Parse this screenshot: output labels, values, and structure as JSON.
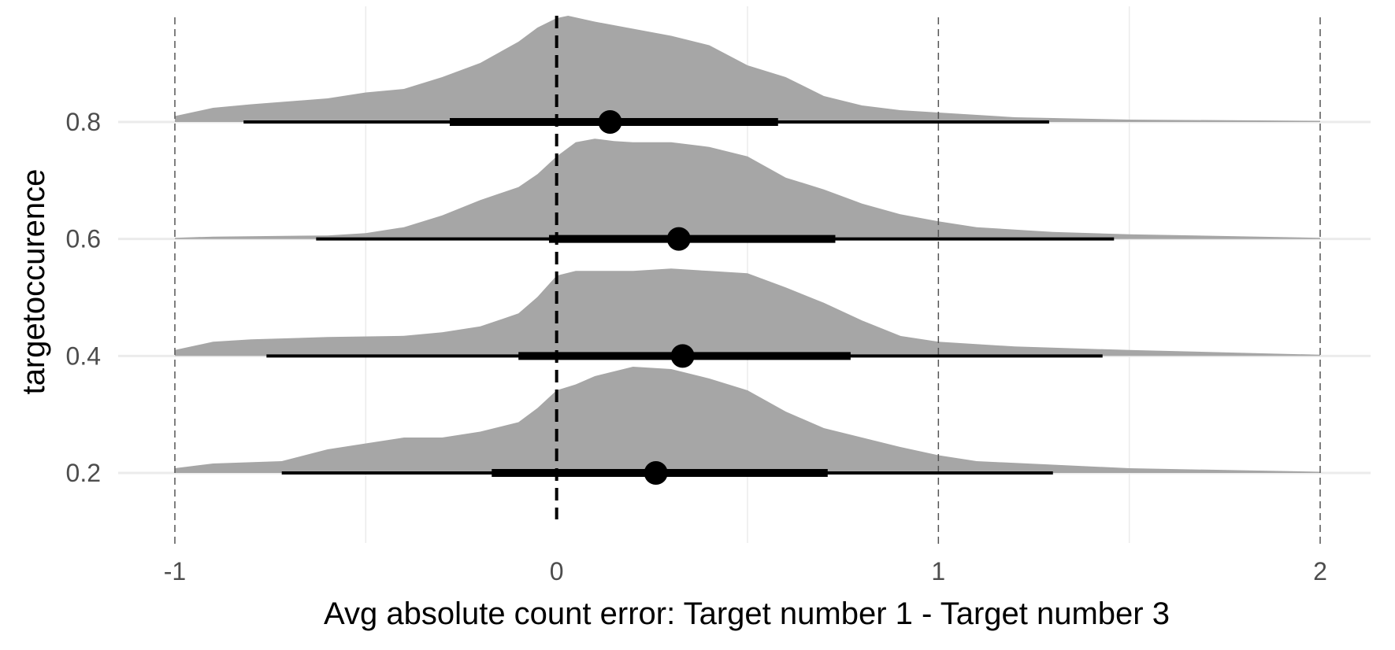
{
  "chart_data": {
    "type": "ridgeline",
    "xlabel": "Avg absolute count error: Target number 1 - Target number 3",
    "ylabel": "targetoccurence",
    "xlim": [
      -1,
      2
    ],
    "x_ticks": [
      "-1",
      "0",
      "1",
      "2"
    ],
    "y_ticks": [
      "0.2",
      "0.4",
      "0.6",
      "0.8"
    ],
    "grid": true,
    "reference_lines": [
      {
        "x": -1,
        "style": "thin-dashed"
      },
      {
        "x": 0,
        "style": "thick-dashed"
      },
      {
        "x": 1,
        "style": "thin-dashed"
      },
      {
        "x": 2,
        "style": "thin-dashed"
      }
    ],
    "series": [
      {
        "y": 0.2,
        "point": 0.26,
        "interval_66": [
          -0.17,
          0.71
        ],
        "interval_95": [
          -0.72,
          1.3
        ],
        "density": [
          [
            -1.0,
            0.04
          ],
          [
            -0.9,
            0.08
          ],
          [
            -0.72,
            0.1
          ],
          [
            -0.6,
            0.2
          ],
          [
            -0.5,
            0.25
          ],
          [
            -0.4,
            0.3
          ],
          [
            -0.3,
            0.3
          ],
          [
            -0.2,
            0.35
          ],
          [
            -0.1,
            0.43
          ],
          [
            -0.05,
            0.55
          ],
          [
            0.0,
            0.7
          ],
          [
            0.05,
            0.75
          ],
          [
            0.1,
            0.82
          ],
          [
            0.2,
            0.9
          ],
          [
            0.3,
            0.88
          ],
          [
            0.4,
            0.8
          ],
          [
            0.5,
            0.7
          ],
          [
            0.6,
            0.52
          ],
          [
            0.7,
            0.38
          ],
          [
            0.8,
            0.3
          ],
          [
            0.9,
            0.22
          ],
          [
            1.0,
            0.15
          ],
          [
            1.1,
            0.1
          ],
          [
            1.3,
            0.07
          ],
          [
            1.5,
            0.04
          ],
          [
            2.0,
            0.01
          ]
        ]
      },
      {
        "y": 0.4,
        "point": 0.33,
        "interval_66": [
          -0.1,
          0.77
        ],
        "interval_95": [
          -0.76,
          1.43
        ],
        "density": [
          [
            -1.0,
            0.05
          ],
          [
            -0.9,
            0.12
          ],
          [
            -0.8,
            0.14
          ],
          [
            -0.6,
            0.16
          ],
          [
            -0.4,
            0.17
          ],
          [
            -0.3,
            0.2
          ],
          [
            -0.2,
            0.25
          ],
          [
            -0.1,
            0.36
          ],
          [
            -0.05,
            0.5
          ],
          [
            0.0,
            0.68
          ],
          [
            0.05,
            0.72
          ],
          [
            0.2,
            0.72
          ],
          [
            0.3,
            0.74
          ],
          [
            0.4,
            0.72
          ],
          [
            0.5,
            0.7
          ],
          [
            0.6,
            0.58
          ],
          [
            0.7,
            0.45
          ],
          [
            0.8,
            0.3
          ],
          [
            0.9,
            0.17
          ],
          [
            1.0,
            0.12
          ],
          [
            1.2,
            0.08
          ],
          [
            1.5,
            0.05
          ],
          [
            2.0,
            0.01
          ]
        ]
      },
      {
        "y": 0.6,
        "point": 0.32,
        "interval_66": [
          -0.02,
          0.73
        ],
        "interval_95": [
          -0.63,
          1.46
        ],
        "density": [
          [
            -1.0,
            0.01
          ],
          [
            -0.9,
            0.02
          ],
          [
            -0.6,
            0.03
          ],
          [
            -0.5,
            0.05
          ],
          [
            -0.4,
            0.1
          ],
          [
            -0.3,
            0.2
          ],
          [
            -0.2,
            0.33
          ],
          [
            -0.1,
            0.44
          ],
          [
            -0.05,
            0.55
          ],
          [
            0.0,
            0.7
          ],
          [
            0.05,
            0.82
          ],
          [
            0.1,
            0.85
          ],
          [
            0.15,
            0.83
          ],
          [
            0.2,
            0.82
          ],
          [
            0.3,
            0.82
          ],
          [
            0.4,
            0.78
          ],
          [
            0.5,
            0.7
          ],
          [
            0.6,
            0.52
          ],
          [
            0.7,
            0.42
          ],
          [
            0.8,
            0.3
          ],
          [
            0.9,
            0.21
          ],
          [
            1.0,
            0.15
          ],
          [
            1.1,
            0.1
          ],
          [
            1.3,
            0.06
          ],
          [
            1.5,
            0.04
          ],
          [
            2.0,
            0.01
          ]
        ]
      },
      {
        "y": 0.8,
        "point": 0.14,
        "interval_66": [
          -0.28,
          0.58
        ],
        "interval_95": [
          -0.82,
          1.29
        ],
        "density": [
          [
            -1.0,
            0.05
          ],
          [
            -0.9,
            0.12
          ],
          [
            -0.8,
            0.15
          ],
          [
            -0.6,
            0.2
          ],
          [
            -0.5,
            0.25
          ],
          [
            -0.4,
            0.28
          ],
          [
            -0.3,
            0.38
          ],
          [
            -0.2,
            0.5
          ],
          [
            -0.1,
            0.68
          ],
          [
            -0.05,
            0.8
          ],
          [
            0.0,
            0.88
          ],
          [
            0.03,
            0.9
          ],
          [
            0.1,
            0.85
          ],
          [
            0.2,
            0.79
          ],
          [
            0.3,
            0.73
          ],
          [
            0.4,
            0.65
          ],
          [
            0.5,
            0.48
          ],
          [
            0.6,
            0.38
          ],
          [
            0.7,
            0.22
          ],
          [
            0.8,
            0.14
          ],
          [
            0.9,
            0.1
          ],
          [
            1.0,
            0.08
          ],
          [
            1.2,
            0.04
          ],
          [
            1.5,
            0.02
          ],
          [
            2.0,
            0.01
          ]
        ]
      }
    ]
  }
}
